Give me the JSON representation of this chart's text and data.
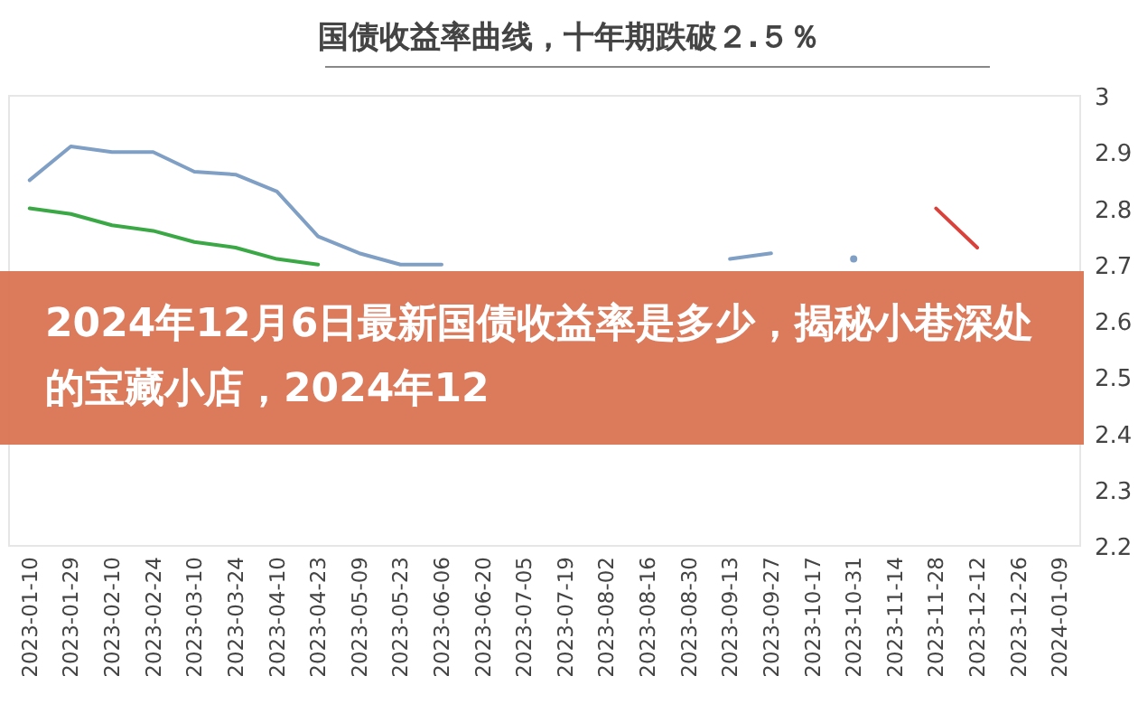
{
  "chart_data": {
    "type": "line",
    "title": "国债收益率曲线，十年期跌破２.５％",
    "annotations": [
      "2024年12月6日最新国债收益率是多少，揭秘小巷深处的宝藏小店，2024年12"
    ],
    "categories": [
      "2023-01-10",
      "2023-01-29",
      "2023-02-10",
      "2023-02-24",
      "2023-03-10",
      "2023-03-24",
      "2023-04-10",
      "2023-04-23",
      "2023-05-09",
      "2023-05-23",
      "2023-06-06",
      "2023-06-20",
      "2023-07-05",
      "2023-07-19",
      "2023-08-02",
      "2023-08-16",
      "2023-08-30",
      "2023-09-13",
      "2023-09-27",
      "2023-10-17",
      "2023-10-31",
      "2023-11-14",
      "2023-11-28",
      "2023-12-12",
      "2023-12-26",
      "2024-01-09"
    ],
    "series": [
      {
        "color": "#7f9fc4",
        "values": [
          2.85,
          2.91,
          2.9,
          2.9,
          2.865,
          2.86,
          2.83,
          2.75,
          2.72,
          2.7,
          2.7,
          null,
          null,
          null,
          null,
          null,
          null,
          2.71,
          2.72,
          null,
          2.71,
          null,
          null,
          null,
          null,
          null
        ]
      },
      {
        "color": "#3aa845",
        "values": [
          2.8,
          2.79,
          2.77,
          2.76,
          2.74,
          2.73,
          2.71,
          2.7,
          null,
          null,
          null,
          null,
          null,
          null,
          null,
          null,
          null,
          null,
          null,
          null,
          null,
          null,
          null,
          null,
          null,
          null
        ]
      },
      {
        "color": "#d9413a",
        "values": [
          null,
          null,
          null,
          null,
          null,
          null,
          null,
          null,
          null,
          null,
          null,
          null,
          null,
          null,
          null,
          null,
          null,
          null,
          null,
          null,
          null,
          null,
          2.8,
          2.73,
          null,
          null
        ]
      }
    ],
    "ylim": [
      2.2,
      3
    ],
    "yticks": [
      2.2,
      2.3,
      2.4,
      2.5,
      2.6,
      2.7,
      2.8,
      2.9,
      3
    ],
    "grid": false
  }
}
